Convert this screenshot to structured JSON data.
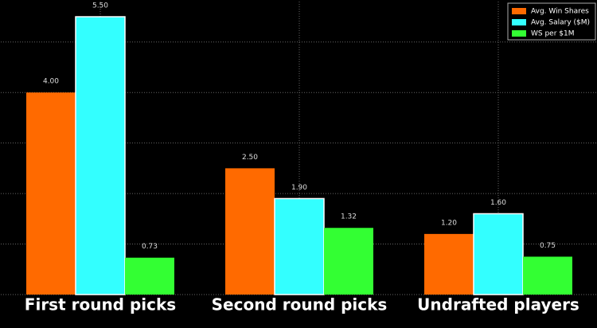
{
  "chart_data": {
    "type": "bar",
    "categories": [
      "First round picks",
      "Second round picks",
      "Undrafted players"
    ],
    "series": [
      {
        "name": "Avg. Win Shares",
        "color": "#ff6a00",
        "values": [
          4.0,
          2.5,
          1.2
        ],
        "value_labels": [
          "4.00",
          "2.50",
          "1.20"
        ]
      },
      {
        "name": "Avg. Salary ($M)",
        "color": "#33ffff",
        "values": [
          5.5,
          1.9,
          1.6
        ],
        "value_labels": [
          "5.50",
          "1.90",
          "1.60"
        ]
      },
      {
        "name": "WS per $1M",
        "color": "#33ff33",
        "values": [
          0.73,
          1.32,
          0.75
        ],
        "value_labels": [
          "0.73",
          "1.32",
          "0.75"
        ]
      }
    ],
    "ylim": [
      0,
      5.8
    ],
    "yticks": [
      0,
      1,
      2,
      3,
      4,
      5
    ],
    "grid": true,
    "legend": "upper right"
  }
}
